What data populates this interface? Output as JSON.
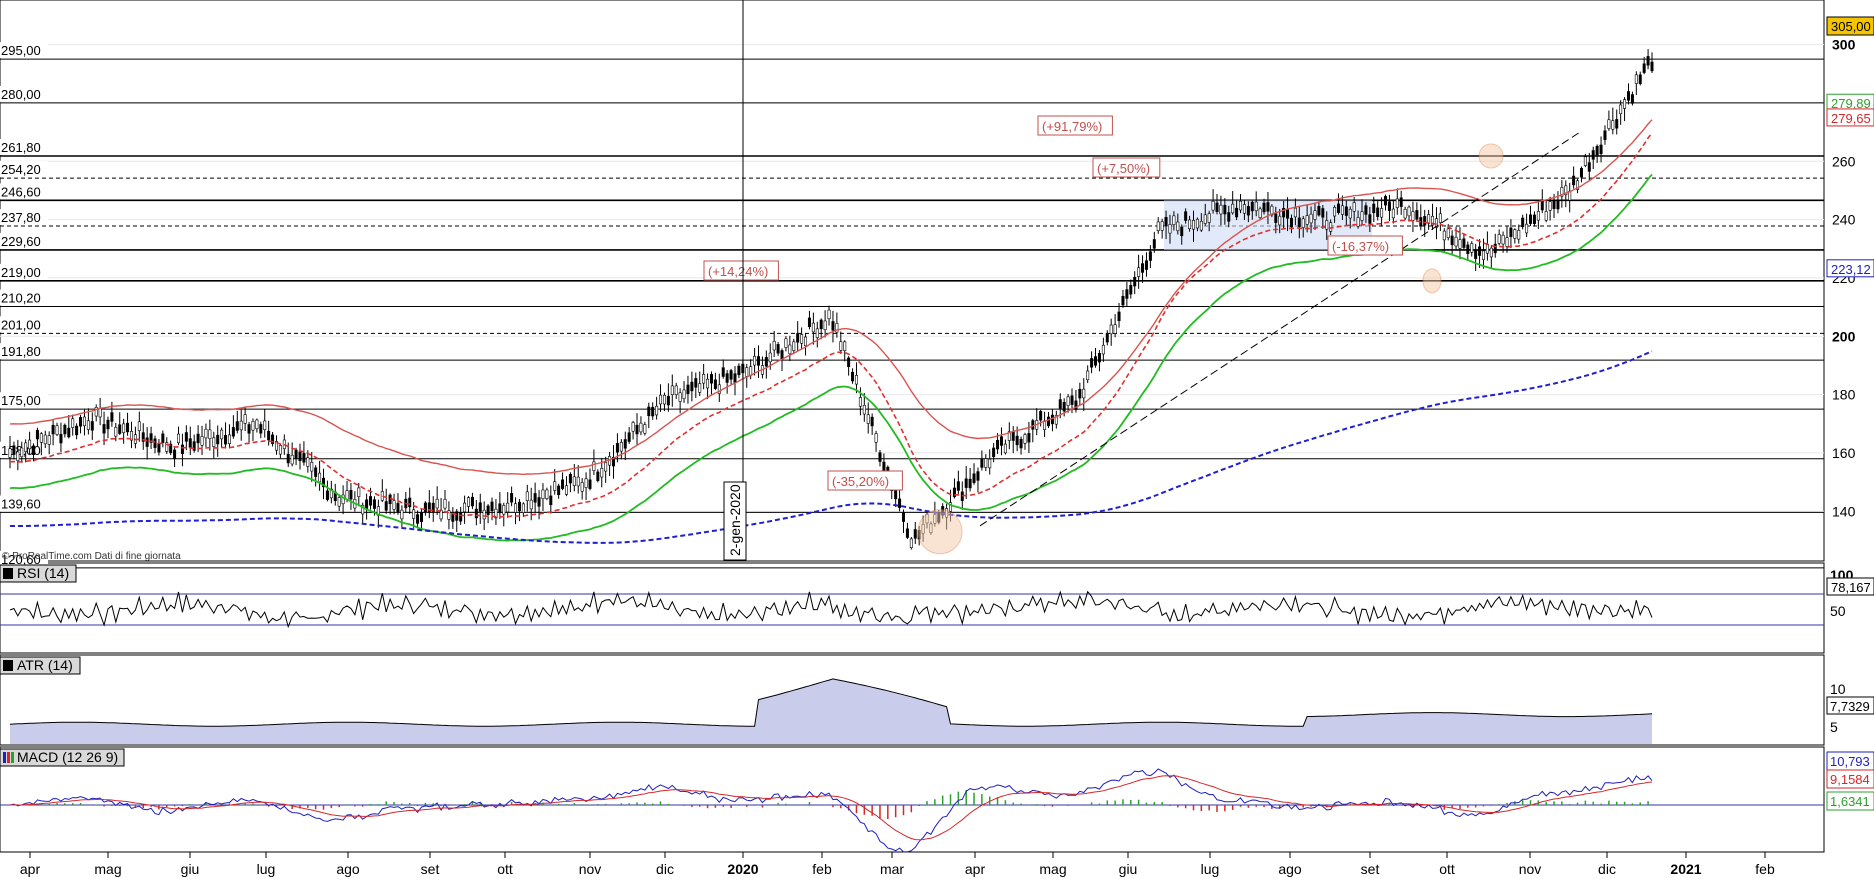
{
  "source_note": "© ProRealTime.com  Dati di fine giornata",
  "date_marker": "2-gen-2020",
  "months": [
    {
      "label": "apr",
      "x": 30
    },
    {
      "label": "mag",
      "x": 108
    },
    {
      "label": "giu",
      "x": 190
    },
    {
      "label": "lug",
      "x": 266
    },
    {
      "label": "ago",
      "x": 348
    },
    {
      "label": "set",
      "x": 430
    },
    {
      "label": "ott",
      "x": 505
    },
    {
      "label": "nov",
      "x": 590
    },
    {
      "label": "dic",
      "x": 665
    },
    {
      "label": "2020",
      "x": 743,
      "bold": true
    },
    {
      "label": "feb",
      "x": 822
    },
    {
      "label": "mar",
      "x": 892
    },
    {
      "label": "apr",
      "x": 975
    },
    {
      "label": "mag",
      "x": 1053
    },
    {
      "label": "giu",
      "x": 1128
    },
    {
      "label": "lug",
      "x": 1210
    },
    {
      "label": "ago",
      "x": 1290
    },
    {
      "label": "set",
      "x": 1370
    },
    {
      "label": "ott",
      "x": 1447
    },
    {
      "label": "nov",
      "x": 1530
    },
    {
      "label": "dic",
      "x": 1607
    },
    {
      "label": "2021",
      "x": 1686,
      "bold": true
    },
    {
      "label": "feb",
      "x": 1765
    }
  ],
  "price_panel": {
    "y_ticks": [
      140,
      160,
      180,
      200,
      220,
      240,
      260,
      280,
      300
    ],
    "bold_ticks": [
      200,
      300
    ],
    "solid_levels": [
      "295,00",
      "280,00",
      "261,80",
      "246,60",
      "229,60",
      "219,00",
      "210,20",
      "191,80",
      "175,00",
      "158,00",
      "139,60",
      "120,60"
    ],
    "dashed_levels": [
      "254,20",
      "237,80",
      "201,00"
    ],
    "last_price_tag": "305,00",
    "tags": [
      {
        "text": "279,89",
        "color": "#2ca02c"
      },
      {
        "text": "279,65",
        "color": "#d62728"
      },
      {
        "text": "223,12",
        "color": "#1f1fbf"
      }
    ],
    "annotations": [
      "(+91,79%)",
      "(+7,50%)",
      "(+14,24%)",
      "(-35,20%)",
      "(-16,37%)"
    ]
  },
  "rsi_panel": {
    "title": "RSI (14)",
    "last": "78,167",
    "ticks": [
      "100",
      "50"
    ]
  },
  "atr_panel": {
    "title": "ATR (14)",
    "last": "7,7329",
    "ticks": [
      "10",
      "5"
    ]
  },
  "macd_panel": {
    "title": "MACD (12 26 9)",
    "macd": "10,793",
    "signal": "9,1584",
    "hist": "1,6341"
  },
  "chart_data": {
    "type": "line",
    "instrument_interval": "daily",
    "x_range": [
      "2019-03",
      "2021-02"
    ],
    "ylim": [
      120,
      305
    ],
    "series": [
      {
        "x": [
          "2019-04",
          "2019-05",
          "2019-06",
          "2019-07",
          "2019-08",
          "2019-09",
          "2019-10",
          "2019-11",
          "2019-12",
          "2020-01",
          "2020-02",
          "2020-03",
          "2020-04",
          "2020-05",
          "2020-06",
          "2020-07",
          "2020-08",
          "2020-09",
          "2020-10",
          "2020-11",
          "2020-12"
        ],
        "values": [
          160,
          172,
          162,
          170,
          145,
          140,
          142,
          150,
          178,
          188,
          207,
          130,
          160,
          178,
          236,
          245,
          240,
          245,
          228,
          250,
          295
        ]
      }
    ],
    "rsi_last": 78.167,
    "atr_last": 7.7329,
    "macd_last": {
      "macd": 10.793,
      "signal": 9.1584,
      "hist": 1.6341
    }
  }
}
